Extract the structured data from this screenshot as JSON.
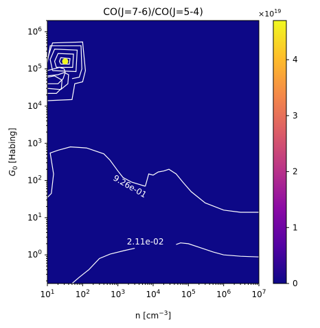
{
  "chart_data": {
    "type": "heatmap",
    "title": "CO(J=7-6)/CO(J=5-4)",
    "xlabel": "n [cm",
    "xlabel_sup": "−3",
    "xlabel_end": "]",
    "ylabel": "G",
    "ylabel_sub": "0",
    "ylabel_end": " [Habing]",
    "xscale": "log",
    "yscale": "log",
    "xlim": [
      10,
      10000000
    ],
    "ylim": [
      0.17,
      2000000
    ],
    "grid": false,
    "x_ticks": [
      {
        "v": 10,
        "base": "10",
        "exp": "1"
      },
      {
        "v": 100,
        "base": "10",
        "exp": "2"
      },
      {
        "v": 1000,
        "base": "10",
        "exp": "3"
      },
      {
        "v": 10000,
        "base": "10",
        "exp": "4"
      },
      {
        "v": 100000,
        "base": "10",
        "exp": "5"
      },
      {
        "v": 1000000,
        "base": "10",
        "exp": "6"
      },
      {
        "v": 10000000,
        "base": "10",
        "exp": "7"
      }
    ],
    "y_ticks": [
      {
        "v": 1,
        "base": "10",
        "exp": "0"
      },
      {
        "v": 10,
        "base": "10",
        "exp": "1"
      },
      {
        "v": 100,
        "base": "10",
        "exp": "2"
      },
      {
        "v": 1000,
        "base": "10",
        "exp": "3"
      },
      {
        "v": 10000,
        "base": "10",
        "exp": "4"
      },
      {
        "v": 100000,
        "base": "10",
        "exp": "5"
      },
      {
        "v": 1000000,
        "base": "10",
        "exp": "6"
      }
    ],
    "background_color": "#0d0887",
    "peak_point": {
      "x": 32,
      "y": 160000,
      "color": "#f0f921"
    },
    "colorbar": {
      "colormap": "plasma",
      "min": 0,
      "max": 4.7,
      "ticks": [
        "0",
        "1",
        "2",
        "3",
        "4"
      ],
      "tick_values": [
        0,
        1,
        2,
        3,
        4
      ],
      "offset_base": "×10",
      "offset_exp": "19",
      "stops": [
        "#0d0887",
        "#5302a3",
        "#8b0aa5",
        "#b83289",
        "#db5c68",
        "#f48849",
        "#febd2a",
        "#f0f921"
      ]
    },
    "contours": [
      {
        "label": "9.26e-01",
        "label_at": {
          "x": 2000,
          "y": 60
        },
        "points": [
          [
            10,
            35
          ],
          [
            13,
            45
          ],
          [
            15,
            150
          ],
          [
            12,
            550
          ],
          [
            20,
            650
          ],
          [
            45,
            800
          ],
          [
            130,
            750
          ],
          [
            400,
            520
          ],
          [
            600,
            350
          ],
          [
            1000,
            180
          ],
          [
            1400,
            120
          ],
          [
            2500,
            90
          ],
          [
            6000,
            70
          ]
        ]
      },
      {
        "label": "",
        "points": [
          [
            6000,
            70
          ],
          [
            7500,
            150
          ],
          [
            10000,
            140
          ],
          [
            14000,
            170
          ],
          [
            20000,
            180
          ],
          [
            28000,
            200
          ],
          [
            45000,
            150
          ],
          [
            70000,
            90
          ],
          [
            120000,
            50
          ],
          [
            300000,
            25
          ],
          [
            1000000,
            16
          ],
          [
            3000000,
            14
          ],
          [
            10000000,
            14
          ]
        ]
      },
      {
        "label": "2.11e-02",
        "label_at": {
          "x": 6000,
          "y": 1.9
        },
        "points": [
          [
            50,
            0.17
          ],
          [
            80,
            0.25
          ],
          [
            150,
            0.4
          ],
          [
            300,
            0.8
          ],
          [
            600,
            1.05
          ],
          [
            1500,
            1.3
          ],
          [
            3000,
            1.5
          ]
        ]
      },
      {
        "label": "",
        "points": [
          [
            45000,
            1.9
          ],
          [
            60000,
            2.1
          ],
          [
            100000,
            2.0
          ],
          [
            200000,
            1.6
          ],
          [
            500000,
            1.2
          ],
          [
            1000000,
            1.0
          ],
          [
            3000000,
            0.92
          ],
          [
            10000000,
            0.88
          ]
        ]
      },
      {
        "label": "",
        "points": [
          [
            10,
            40000
          ],
          [
            20,
            40000
          ],
          [
            28,
            55000
          ],
          [
            32,
            80000
          ],
          [
            30,
            100000
          ],
          [
            22,
            110000
          ],
          [
            15,
            100000
          ],
          [
            10,
            90000
          ]
        ]
      },
      {
        "label": "",
        "points": [
          [
            10,
            30000
          ],
          [
            24,
            28000
          ],
          [
            38,
            40000
          ],
          [
            40,
            70000
          ],
          [
            30,
            80000
          ],
          [
            20,
            70000
          ],
          [
            10,
            65000
          ]
        ]
      },
      {
        "label": "",
        "points": [
          [
            28,
            160000
          ],
          [
            36,
            160000
          ],
          [
            36,
            175000
          ],
          [
            28,
            175000
          ],
          [
            28,
            160000
          ]
        ]
      },
      {
        "label": "",
        "points": [
          [
            24,
            135000
          ],
          [
            42,
            135000
          ],
          [
            44,
            190000
          ],
          [
            24,
            200000
          ],
          [
            22,
            160000
          ],
          [
            24,
            135000
          ]
        ]
      },
      {
        "label": "",
        "points": [
          [
            18,
            110000
          ],
          [
            52,
            110000
          ],
          [
            55,
            250000
          ],
          [
            20,
            260000
          ],
          [
            16,
            160000
          ],
          [
            18,
            110000
          ]
        ]
      },
      {
        "label": "",
        "points": [
          [
            14,
            90000
          ],
          [
            65,
            85000
          ],
          [
            70,
            320000
          ],
          [
            16,
            340000
          ],
          [
            12,
            180000
          ],
          [
            14,
            90000
          ]
        ]
      },
      {
        "label": "",
        "points": [
          [
            10,
            150000
          ],
          [
            12,
            420000
          ],
          [
            90,
            420000
          ],
          [
            95,
            100000
          ],
          [
            80,
            60000
          ],
          [
            50,
            55000
          ]
        ]
      },
      {
        "label": "",
        "points": [
          [
            10,
            180000
          ],
          [
            14,
            500000
          ],
          [
            100,
            530000
          ],
          [
            120,
            90000
          ],
          [
            100,
            45000
          ],
          [
            60,
            40000
          ],
          [
            50,
            15000
          ],
          [
            10,
            14000
          ]
        ]
      },
      {
        "label": "",
        "points": [
          [
            10,
            60000
          ],
          [
            16,
            65000
          ],
          [
            26,
            50000
          ],
          [
            25,
            30000
          ],
          [
            18,
            22000
          ],
          [
            10,
            22000
          ]
        ]
      }
    ]
  }
}
